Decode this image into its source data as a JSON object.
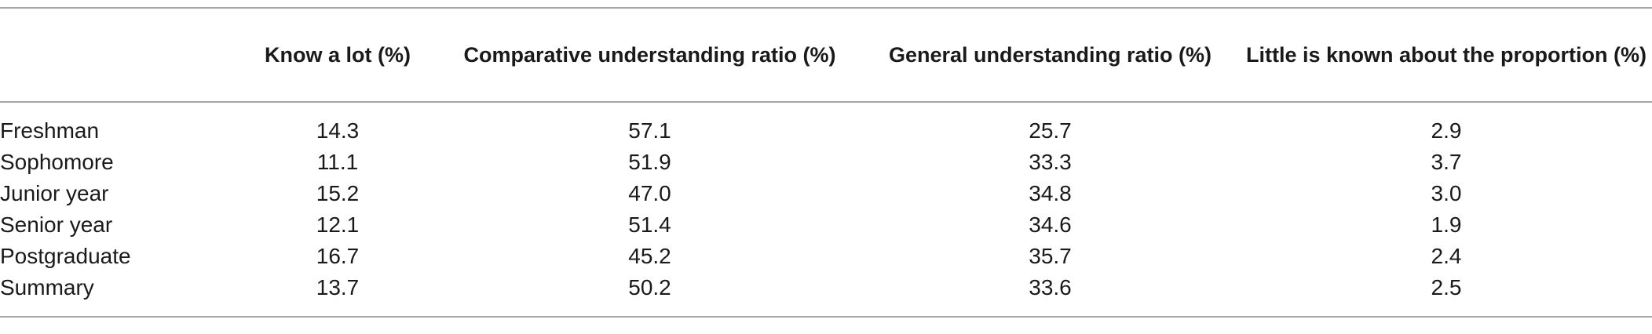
{
  "table": {
    "headers": [
      "",
      "Know a lot (%)",
      "Comparative understanding ratio (%)",
      "General understanding ratio (%)",
      "Little is known about the proportion (%)"
    ],
    "rows": [
      {
        "label": "Freshman",
        "values": [
          "14.3",
          "57.1",
          "25.7",
          "2.9"
        ]
      },
      {
        "label": "Sophomore",
        "values": [
          "11.1",
          "51.9",
          "33.3",
          "3.7"
        ]
      },
      {
        "label": "Junior year",
        "values": [
          "15.2",
          "47.0",
          "34.8",
          "3.0"
        ]
      },
      {
        "label": "Senior year",
        "values": [
          "12.1",
          "51.4",
          "34.6",
          "1.9"
        ]
      },
      {
        "label": "Postgraduate",
        "values": [
          "16.7",
          "45.2",
          "35.7",
          "2.4"
        ]
      },
      {
        "label": "Summary",
        "values": [
          "13.7",
          "50.2",
          "33.6",
          "2.5"
        ]
      }
    ]
  }
}
